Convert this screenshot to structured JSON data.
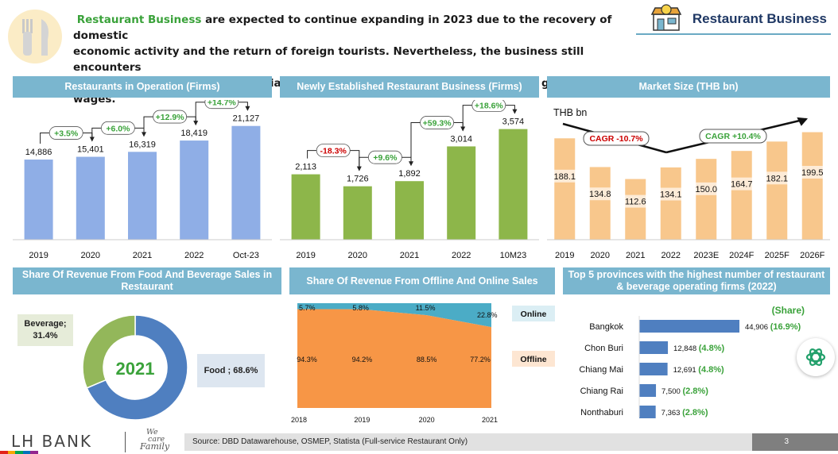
{
  "header": {
    "highlight": "Restaurant Business",
    "line1_rest": " are expected to continue expanding in 2023 due to the recovery of domestic",
    "line2": "economic activity and the return of foreign tourists. Nevertheless, the business still encounters",
    "line3": "persistent cost pressures, especially from raw materials, electricity, cooking gas, and wages.",
    "badge": "Restaurant Business"
  },
  "colors": {
    "panel": "#7ab6cf",
    "blue_bar": "#8faee6",
    "green_bar": "#8db64a",
    "orange_bar": "#f8c78c",
    "donut_blue": "#4f7fc0",
    "donut_green": "#93b75a",
    "area_blue": "#4bacc6",
    "area_orange": "#f79646",
    "prov_bar": "#4f7fc0",
    "share_green": "#3aa23a",
    "neg_red": "#cc0000"
  },
  "chart_data": [
    {
      "type": "bar",
      "title": "Restaurants in Operation (Firms)",
      "categories": [
        "2019",
        "2020",
        "2021",
        "2022",
        "Oct-23"
      ],
      "values": [
        14886,
        15401,
        16319,
        18419,
        21127
      ],
      "value_labels": [
        "14,886",
        "15,401",
        "16,319",
        "18,419",
        "21,127"
      ],
      "growth": [
        "+3.5%",
        "+6.0%",
        "+12.9%",
        "+14.7%"
      ],
      "ylim": [
        0,
        23000
      ]
    },
    {
      "type": "bar",
      "title": "Newly Established Restaurant Business (Firms)",
      "categories": [
        "2019",
        "2020",
        "2021",
        "2022",
        "10M23"
      ],
      "values": [
        2113,
        1726,
        1892,
        3014,
        3574
      ],
      "value_labels": [
        "2,113",
        "1,726",
        "1,892",
        "3,014",
        "3,574"
      ],
      "growth": [
        "-18.3%",
        "+9.6%",
        "+59.3%",
        "+18.6%"
      ],
      "ylim": [
        0,
        4000
      ]
    },
    {
      "type": "bar",
      "title": "Market Size (THB bn)",
      "ylabel": "THB bn",
      "categories": [
        "2019",
        "2020",
        "2021",
        "2022",
        "2023E",
        "2024F",
        "2025F",
        "2026F"
      ],
      "values": [
        188.1,
        134.8,
        112.6,
        134.1,
        150.0,
        164.7,
        182.1,
        199.5
      ],
      "value_labels": [
        "188.1",
        "134.8",
        "112.6",
        "134.1",
        "150.0",
        "164.7",
        "182.1",
        "199.5"
      ],
      "cagr_labels": [
        "CAGR -10.7%",
        "CAGR +10.4%"
      ],
      "ylim": [
        0,
        215
      ]
    },
    {
      "type": "pie",
      "title": "Share Of Revenue From Food And Beverage Sales in Restaurant",
      "center_label": "2021",
      "slices": [
        {
          "name": "Food",
          "value": 68.6,
          "label": "Food ; 68.6%"
        },
        {
          "name": "Beverage",
          "value": 31.4,
          "label": "Beverage; 31.4%"
        }
      ]
    },
    {
      "type": "area",
      "title": "Share Of Revenue From Offline And Online Sales",
      "x": [
        "2018",
        "2019",
        "2020",
        "2021"
      ],
      "series": [
        {
          "name": "Online",
          "values": [
            5.7,
            5.8,
            11.5,
            22.8
          ],
          "labels": [
            "5.7%",
            "5.8%",
            "11.5%",
            "22.8%"
          ]
        },
        {
          "name": "Offline",
          "values": [
            94.3,
            94.2,
            88.5,
            77.2
          ],
          "labels": [
            "94.3%",
            "94.2%",
            "88.5%",
            "77.2%"
          ]
        }
      ],
      "ylim": [
        0,
        100
      ]
    },
    {
      "type": "bar",
      "orientation": "horizontal",
      "title": "Top 5 provinces with the highest number of restaurant & beverage operating firms  (2022)",
      "share_header": "(Share)",
      "categories": [
        "Bangkok",
        "Chon Buri",
        "Chiang Mai",
        "Chiang Rai",
        "Nonthaburi"
      ],
      "values": [
        44906,
        12848,
        12691,
        7500,
        7363
      ],
      "value_labels": [
        "44,906",
        "12,848",
        "12,691",
        "7,500",
        "7,363"
      ],
      "shares": [
        "(16.9%)",
        "(4.8%)",
        "(4.8%)",
        "(2.8%)",
        "(2.8%)"
      ]
    }
  ],
  "footer": {
    "brand": "LH BANK",
    "tagline1": "We",
    "tagline2": "care",
    "tagline3": "Family",
    "source": "Source: DBD Datawarehouse, OSMEP, Statista (Full-service Restaurant Only)",
    "page": "3"
  }
}
